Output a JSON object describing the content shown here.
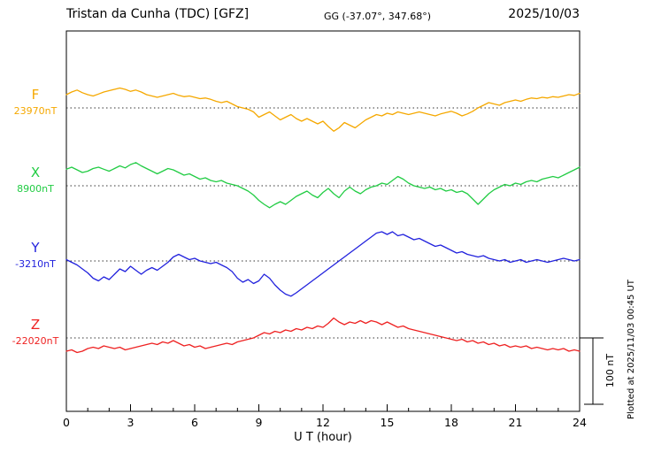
{
  "header": {
    "title": "Tristan da Cunha (TDC)  [GFZ]",
    "coordinates": "GG (-37.07°, 347.68°)",
    "date": "2025/10/03"
  },
  "scale_bar": {
    "label": "100 nT"
  },
  "side_note": "Plotted at 2025/11/03 00:45 UT",
  "chart_data": {
    "type": "line",
    "title": "Magnetogram Tristan da Cunha (TDC) [GFZ] 2025/10/03",
    "xlabel": "U T (hour)",
    "x_start": 0,
    "x_end": 24,
    "x_step_hours": 0.25,
    "xticks": [
      0,
      3,
      6,
      9,
      12,
      15,
      18,
      21,
      24
    ],
    "scale_bar_nT": 100,
    "grid": "dotted horizontal baseline per component",
    "series": [
      {
        "name": "F",
        "baseline_label": "23970nT",
        "baseline_nT": 23970,
        "color": "#f5a800",
        "offsets_nT": [
          20,
          24,
          27,
          23,
          20,
          18,
          21,
          24,
          26,
          28,
          30,
          28,
          25,
          27,
          24,
          20,
          18,
          16,
          18,
          20,
          22,
          19,
          17,
          18,
          16,
          14,
          15,
          13,
          10,
          8,
          10,
          6,
          2,
          0,
          -2,
          -6,
          -14,
          -10,
          -6,
          -12,
          -18,
          -14,
          -10,
          -16,
          -20,
          -16,
          -20,
          -24,
          -20,
          -28,
          -35,
          -30,
          -22,
          -26,
          -30,
          -24,
          -18,
          -14,
          -10,
          -12,
          -8,
          -10,
          -6,
          -8,
          -10,
          -8,
          -6,
          -8,
          -10,
          -12,
          -9,
          -7,
          -5,
          -8,
          -12,
          -9,
          -5,
          0,
          4,
          8,
          6,
          4,
          8,
          10,
          12,
          10,
          13,
          15,
          14,
          16,
          15,
          17,
          16,
          18,
          20,
          19,
          22
        ]
      },
      {
        "name": "X",
        "baseline_label": "8900nT",
        "baseline_nT": 8900,
        "color": "#22cc44",
        "offsets_nT": [
          25,
          28,
          24,
          20,
          22,
          26,
          28,
          25,
          22,
          26,
          30,
          27,
          32,
          35,
          30,
          26,
          22,
          18,
          22,
          26,
          24,
          20,
          16,
          18,
          14,
          10,
          12,
          8,
          6,
          8,
          4,
          2,
          0,
          -4,
          -8,
          -14,
          -22,
          -28,
          -33,
          -28,
          -24,
          -28,
          -22,
          -16,
          -12,
          -8,
          -14,
          -18,
          -10,
          -4,
          -12,
          -18,
          -8,
          -2,
          -8,
          -12,
          -6,
          -2,
          0,
          4,
          2,
          8,
          14,
          10,
          4,
          0,
          -2,
          -4,
          -2,
          -6,
          -4,
          -8,
          -6,
          -10,
          -8,
          -12,
          -20,
          -28,
          -20,
          -12,
          -6,
          -2,
          2,
          0,
          4,
          2,
          6,
          8,
          6,
          10,
          12,
          14,
          12,
          16,
          20,
          24,
          28
        ]
      },
      {
        "name": "Y",
        "baseline_label": "-3210nT",
        "baseline_nT": -3210,
        "color": "#2222dd",
        "offsets_nT": [
          2,
          -2,
          -6,
          -12,
          -18,
          -26,
          -30,
          -24,
          -28,
          -20,
          -12,
          -16,
          -8,
          -14,
          -20,
          -14,
          -10,
          -14,
          -8,
          -2,
          6,
          10,
          6,
          2,
          4,
          0,
          -2,
          -4,
          -2,
          -6,
          -10,
          -16,
          -26,
          -32,
          -28,
          -34,
          -30,
          -20,
          -26,
          -36,
          -44,
          -50,
          -53,
          -48,
          -42,
          -36,
          -30,
          -24,
          -18,
          -12,
          -6,
          0,
          6,
          12,
          18,
          24,
          30,
          36,
          42,
          44,
          40,
          44,
          38,
          40,
          36,
          32,
          34,
          30,
          26,
          22,
          24,
          20,
          16,
          12,
          14,
          10,
          8,
          6,
          8,
          4,
          2,
          0,
          2,
          -2,
          0,
          2,
          -2,
          0,
          2,
          0,
          -2,
          0,
          2,
          4,
          2,
          0,
          2
        ]
      },
      {
        "name": "Z",
        "baseline_label": "-22020nT",
        "baseline_nT": -22020,
        "color": "#ee2222",
        "offsets_nT": [
          -20,
          -18,
          -22,
          -20,
          -16,
          -14,
          -16,
          -12,
          -14,
          -16,
          -14,
          -18,
          -16,
          -14,
          -12,
          -10,
          -8,
          -10,
          -6,
          -8,
          -4,
          -8,
          -12,
          -10,
          -14,
          -12,
          -16,
          -14,
          -12,
          -10,
          -8,
          -10,
          -6,
          -4,
          -2,
          0,
          4,
          8,
          6,
          10,
          8,
          12,
          10,
          14,
          12,
          16,
          14,
          18,
          16,
          22,
          30,
          24,
          20,
          24,
          22,
          26,
          22,
          26,
          24,
          20,
          24,
          20,
          16,
          18,
          14,
          12,
          10,
          8,
          6,
          4,
          2,
          0,
          -2,
          -4,
          -2,
          -6,
          -4,
          -8,
          -6,
          -10,
          -8,
          -12,
          -10,
          -14,
          -12,
          -14,
          -12,
          -16,
          -14,
          -16,
          -18,
          -16,
          -18,
          -16,
          -20,
          -18,
          -20
        ]
      }
    ]
  }
}
